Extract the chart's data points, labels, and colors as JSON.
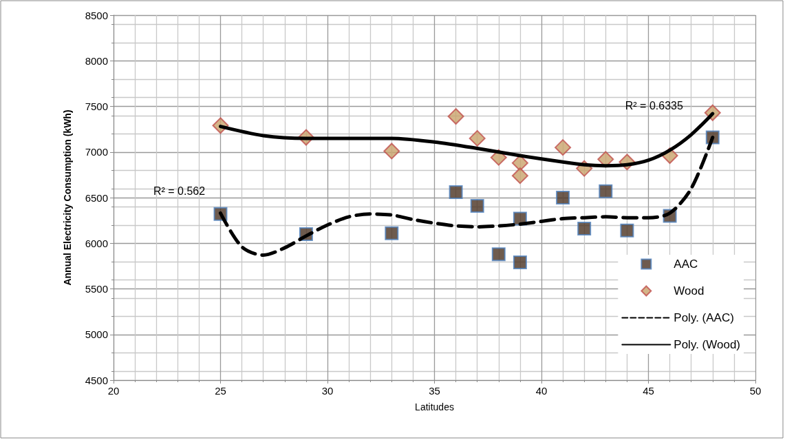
{
  "chart_data": {
    "type": "scatter",
    "xlabel": "Latitudes",
    "ylabel": "Annual Electricity Consumption (kWh)",
    "xlim": [
      20,
      50
    ],
    "xticks": [
      20,
      25,
      30,
      35,
      40,
      45,
      50
    ],
    "ylim": [
      4500,
      8500
    ],
    "yticks": [
      4500,
      5000,
      5500,
      6000,
      6500,
      7000,
      7500,
      8000,
      8500
    ],
    "grid": true,
    "legend": "right",
    "series": [
      {
        "name": "AAC",
        "marker": "square",
        "color": "#4a3222",
        "x": [
          25,
          29,
          33,
          36,
          37,
          38,
          39,
          39,
          41,
          42,
          43,
          44,
          46,
          48
        ],
        "values": [
          6320,
          6100,
          6110,
          6560,
          6410,
          5880,
          5790,
          6270,
          6500,
          6160,
          6570,
          6140,
          6300,
          7160
        ]
      },
      {
        "name": "Wood",
        "marker": "diamond",
        "color": "#c9a26b",
        "x": [
          25,
          29,
          33,
          36,
          37,
          38,
          39,
          39,
          41,
          42,
          43,
          44,
          46,
          48
        ],
        "values": [
          7290,
          7160,
          7010,
          7390,
          7150,
          6940,
          6880,
          6740,
          7050,
          6820,
          6920,
          6890,
          6960,
          7430
        ]
      },
      {
        "name": "Poly. (AAC)",
        "type": "line",
        "line_style": "dashed",
        "color": "#000000",
        "x": [
          25,
          26,
          27,
          28,
          29,
          30,
          31,
          32,
          33,
          34,
          35,
          36,
          37,
          38,
          39,
          40,
          41,
          42,
          43,
          44,
          45,
          46,
          47,
          48
        ],
        "values": [
          6330,
          5960,
          5870,
          5950,
          6080,
          6200,
          6290,
          6320,
          6310,
          6260,
          6220,
          6190,
          6180,
          6190,
          6210,
          6240,
          6270,
          6280,
          6290,
          6280,
          6280,
          6330,
          6600,
          7160
        ]
      },
      {
        "name": "Poly. (Wood)",
        "type": "line",
        "line_style": "solid",
        "color": "#000000",
        "x": [
          25,
          27,
          29,
          31,
          33,
          35,
          37,
          39,
          41,
          42,
          43,
          44,
          45,
          46,
          47,
          48
        ],
        "values": [
          7280,
          7180,
          7150,
          7150,
          7150,
          7110,
          7040,
          6960,
          6890,
          6860,
          6850,
          6860,
          6910,
          7020,
          7190,
          7420
        ]
      }
    ],
    "annotations": [
      "R² = 0.562",
      "R² = 0.6335"
    ]
  }
}
